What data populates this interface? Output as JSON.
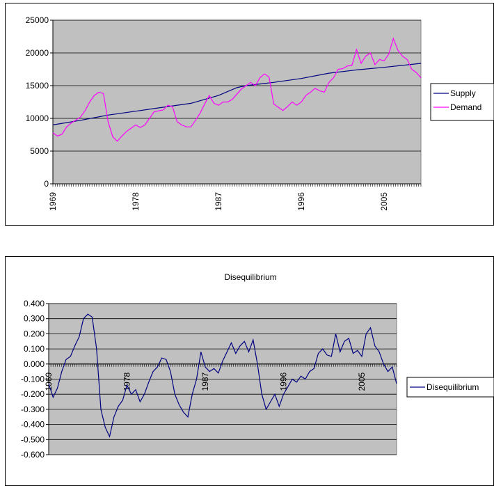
{
  "chart_data": [
    {
      "type": "line",
      "title": "",
      "xlabel": "",
      "ylabel": "",
      "x_range": [
        1969,
        2009
      ],
      "ylim": [
        0,
        25000
      ],
      "y_ticks": [
        "0",
        "5000",
        "10000",
        "15000",
        "20000",
        "25000"
      ],
      "x_tick_labels": [
        "1969",
        "1978",
        "1987",
        "1996",
        "2005"
      ],
      "grid": true,
      "legend": "right",
      "series": [
        {
          "name": "Supply",
          "color": "#000080",
          "points": [
            [
              1969,
              9000
            ],
            [
              1972,
              9700
            ],
            [
              1975,
              10500
            ],
            [
              1978,
              11100
            ],
            [
              1981,
              11700
            ],
            [
              1984,
              12300
            ],
            [
              1987,
              13500
            ],
            [
              1989,
              14700
            ],
            [
              1990,
              15000
            ],
            [
              1993,
              15500
            ],
            [
              1996,
              16100
            ],
            [
              1999,
              16900
            ],
            [
              2002,
              17400
            ],
            [
              2005,
              17800
            ],
            [
              2009,
              18400
            ]
          ]
        },
        {
          "name": "Demand",
          "color": "#ff00ff",
          "points": [
            [
              1969,
              7800
            ],
            [
              1969.5,
              7300
            ],
            [
              1970,
              7600
            ],
            [
              1970.5,
              8700
            ],
            [
              1971,
              9300
            ],
            [
              1972,
              10200
            ],
            [
              1972.5,
              11200
            ],
            [
              1973,
              12500
            ],
            [
              1973.5,
              13500
            ],
            [
              1974,
              14000
            ],
            [
              1974.5,
              13800
            ],
            [
              1975,
              9500
            ],
            [
              1975.5,
              7200
            ],
            [
              1976,
              6500
            ],
            [
              1976.5,
              7300
            ],
            [
              1977,
              8000
            ],
            [
              1977.5,
              8500
            ],
            [
              1978,
              9000
            ],
            [
              1978.5,
              8600
            ],
            [
              1979,
              9000
            ],
            [
              1979.5,
              10000
            ],
            [
              1980,
              11000
            ],
            [
              1981,
              11300
            ],
            [
              1981.5,
              12000
            ],
            [
              1982,
              11800
            ],
            [
              1982.5,
              9500
            ],
            [
              1983,
              9000
            ],
            [
              1983.5,
              8700
            ],
            [
              1984,
              8700
            ],
            [
              1984.5,
              9700
            ],
            [
              1985,
              10800
            ],
            [
              1985.5,
              12200
            ],
            [
              1986,
              13500
            ],
            [
              1986.5,
              12300
            ],
            [
              1987,
              12000
            ],
            [
              1987.5,
              12500
            ],
            [
              1988,
              12500
            ],
            [
              1988.5,
              12900
            ],
            [
              1989,
              13700
            ],
            [
              1989.5,
              14500
            ],
            [
              1990,
              15000
            ],
            [
              1990.5,
              15500
            ],
            [
              1991,
              15000
            ],
            [
              1991.5,
              16200
            ],
            [
              1992,
              16800
            ],
            [
              1992.5,
              16300
            ],
            [
              1993,
              12200
            ],
            [
              1993.5,
              11700
            ],
            [
              1994,
              11200
            ],
            [
              1994.5,
              11800
            ],
            [
              1995,
              12500
            ],
            [
              1995.5,
              12000
            ],
            [
              1996,
              12500
            ],
            [
              1996.5,
              13500
            ],
            [
              1997,
              14000
            ],
            [
              1997.5,
              14600
            ],
            [
              1998,
              14200
            ],
            [
              1998.5,
              14000
            ],
            [
              1999,
              15500
            ],
            [
              1999.5,
              16200
            ],
            [
              2000,
              17500
            ],
            [
              2000.5,
              17600
            ],
            [
              2001,
              18000
            ],
            [
              2001.5,
              18100
            ],
            [
              2002,
              20500
            ],
            [
              2002.5,
              18400
            ],
            [
              2003,
              19500
            ],
            [
              2003.5,
              20000
            ],
            [
              2004,
              18200
            ],
            [
              2004.5,
              19000
            ],
            [
              2005,
              18800
            ],
            [
              2005.5,
              19800
            ],
            [
              2006,
              22200
            ],
            [
              2006.5,
              20400
            ],
            [
              2007,
              19500
            ],
            [
              2007.5,
              19000
            ],
            [
              2008,
              17500
            ],
            [
              2008.5,
              17000
            ],
            [
              2009,
              16200
            ]
          ]
        }
      ]
    },
    {
      "type": "line",
      "title": "Disequilibrium",
      "xlabel": "",
      "ylabel": "",
      "x_range": [
        1969,
        2009
      ],
      "ylim": [
        -0.6,
        0.4
      ],
      "y_ticks": [
        "-0.600",
        "-0.500",
        "-0.400",
        "-0.300",
        "-0.200",
        "-0.100",
        "0.000",
        "0.100",
        "0.200",
        "0.300",
        "0.400"
      ],
      "x_tick_labels": [
        "1969",
        "1978",
        "1987",
        "1996",
        "2005"
      ],
      "grid": true,
      "legend": "right",
      "series": [
        {
          "name": "Disequilibrium",
          "color": "#000080",
          "points": [
            [
              1969,
              -0.13
            ],
            [
              1969.5,
              -0.22
            ],
            [
              1970,
              -0.16
            ],
            [
              1970.5,
              -0.05
            ],
            [
              1971,
              0.03
            ],
            [
              1971.5,
              0.05
            ],
            [
              1972,
              0.12
            ],
            [
              1972.5,
              0.18
            ],
            [
              1973,
              0.3
            ],
            [
              1973.5,
              0.33
            ],
            [
              1974,
              0.31
            ],
            [
              1974.5,
              0.1
            ],
            [
              1975,
              -0.3
            ],
            [
              1975.5,
              -0.42
            ],
            [
              1976,
              -0.48
            ],
            [
              1976.5,
              -0.35
            ],
            [
              1977,
              -0.28
            ],
            [
              1977.5,
              -0.24
            ],
            [
              1978,
              -0.14
            ],
            [
              1978.5,
              -0.2
            ],
            [
              1979,
              -0.17
            ],
            [
              1979.5,
              -0.25
            ],
            [
              1980,
              -0.2
            ],
            [
              1980.5,
              -0.12
            ],
            [
              1981,
              -0.05
            ],
            [
              1981.5,
              -0.02
            ],
            [
              1982,
              0.04
            ],
            [
              1982.5,
              0.03
            ],
            [
              1983,
              -0.05
            ],
            [
              1983.5,
              -0.2
            ],
            [
              1984,
              -0.27
            ],
            [
              1984.5,
              -0.32
            ],
            [
              1985,
              -0.35
            ],
            [
              1985.5,
              -0.2
            ],
            [
              1986,
              -0.1
            ],
            [
              1986.5,
              0.08
            ],
            [
              1987,
              -0.02
            ],
            [
              1987.5,
              -0.05
            ],
            [
              1988,
              -0.03
            ],
            [
              1988.5,
              -0.06
            ],
            [
              1989,
              0.02
            ],
            [
              1989.5,
              0.08
            ],
            [
              1990,
              0.14
            ],
            [
              1990.5,
              0.07
            ],
            [
              1991,
              0.12
            ],
            [
              1991.5,
              0.15
            ],
            [
              1992,
              0.08
            ],
            [
              1992.5,
              0.16
            ],
            [
              1993,
              0.0
            ],
            [
              1993.5,
              -0.2
            ],
            [
              1994,
              -0.3
            ],
            [
              1994.5,
              -0.25
            ],
            [
              1995,
              -0.2
            ],
            [
              1995.5,
              -0.28
            ],
            [
              1996,
              -0.2
            ],
            [
              1996.5,
              -0.15
            ],
            [
              1997,
              -0.1
            ],
            [
              1997.5,
              -0.12
            ],
            [
              1998,
              -0.08
            ],
            [
              1998.5,
              -0.1
            ],
            [
              1999,
              -0.05
            ],
            [
              1999.5,
              -0.03
            ],
            [
              2000,
              0.07
            ],
            [
              2000.5,
              0.1
            ],
            [
              2001,
              0.06
            ],
            [
              2001.5,
              0.05
            ],
            [
              2002,
              0.2
            ],
            [
              2002.5,
              0.08
            ],
            [
              2003,
              0.15
            ],
            [
              2003.5,
              0.17
            ],
            [
              2004,
              0.07
            ],
            [
              2004.5,
              0.09
            ],
            [
              2005,
              0.05
            ],
            [
              2005.5,
              0.2
            ],
            [
              2006,
              0.24
            ],
            [
              2006.5,
              0.12
            ],
            [
              2007,
              0.08
            ],
            [
              2007.5,
              0.0
            ],
            [
              2008,
              -0.05
            ],
            [
              2008.5,
              -0.02
            ],
            [
              2009,
              -0.13
            ]
          ]
        }
      ]
    }
  ]
}
